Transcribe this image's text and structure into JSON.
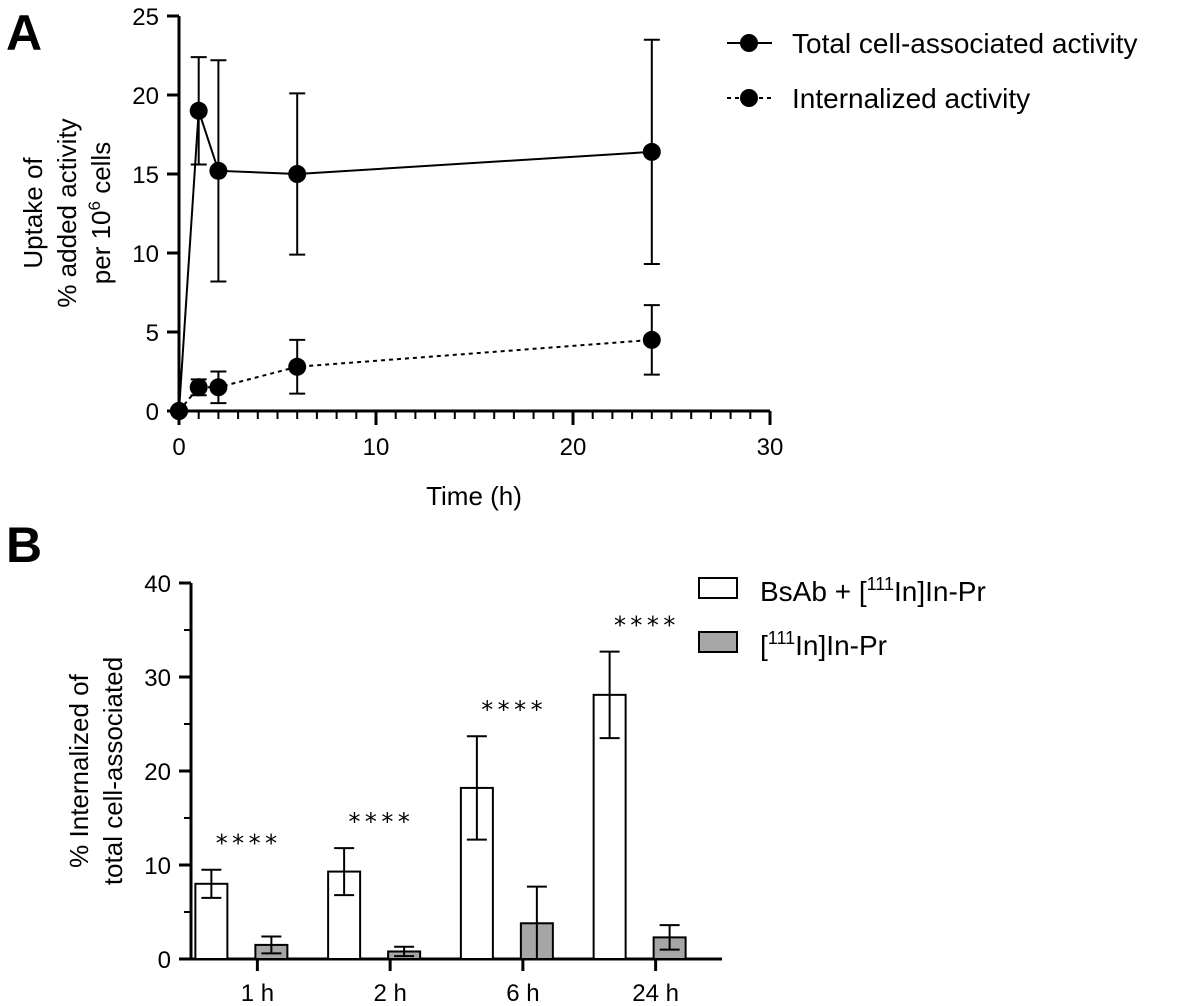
{
  "chart_data": [
    {
      "panel": "A",
      "type": "line",
      "xlabel": "Time (h)",
      "ylabel_lines": [
        "Uptake of",
        "% added activity",
        "per 10",
        "6",
        " cells"
      ],
      "xlim": [
        0,
        30
      ],
      "ylim": [
        0,
        25
      ],
      "xticks": [
        0,
        10,
        20,
        30
      ],
      "yticks": [
        0,
        5,
        10,
        15,
        20,
        25
      ],
      "x_minor_step": 1,
      "series": [
        {
          "name": "Total cell-associated activity",
          "style": "solid",
          "x": [
            0,
            1,
            2,
            6,
            24
          ],
          "y": [
            0,
            19.0,
            15.2,
            15.0,
            16.4
          ],
          "err": [
            0,
            3.4,
            7.0,
            5.1,
            7.1
          ]
        },
        {
          "name": "Internalized activity",
          "style": "dashed",
          "x": [
            0,
            1,
            2,
            6,
            24
          ],
          "y": [
            0,
            1.5,
            1.5,
            2.8,
            4.5
          ],
          "err": [
            0,
            0.5,
            1.0,
            1.7,
            2.2
          ]
        }
      ]
    },
    {
      "panel": "B",
      "type": "bar",
      "ylabel_lines": [
        "% Internalized of",
        "total cell-associated"
      ],
      "ylim": [
        0,
        40
      ],
      "yticks": [
        0,
        10,
        20,
        30,
        40
      ],
      "y_minor_step": 5,
      "categories": [
        "1 h",
        "2 h",
        "6 h",
        "24 h"
      ],
      "series": [
        {
          "name": "BsAb + [111In]In-Pr",
          "legend_parts": [
            "BsAb + [",
            "111",
            "In]In-Pr"
          ],
          "color": "#ffffff",
          "values": [
            8.0,
            9.3,
            18.2,
            28.1
          ],
          "err": [
            1.5,
            2.5,
            5.5,
            4.6
          ]
        },
        {
          "name": "[111In]In-Pr",
          "legend_parts": [
            "[",
            "111",
            "In]In-Pr"
          ],
          "color": "#a6a6a6",
          "values": [
            1.5,
            0.8,
            3.8,
            2.3
          ],
          "err": [
            0.9,
            0.5,
            3.9,
            1.3
          ]
        }
      ],
      "annotations": [
        "****",
        "****",
        "****",
        "****"
      ]
    }
  ],
  "panels": {
    "a_label": "A",
    "b_label": "B"
  }
}
